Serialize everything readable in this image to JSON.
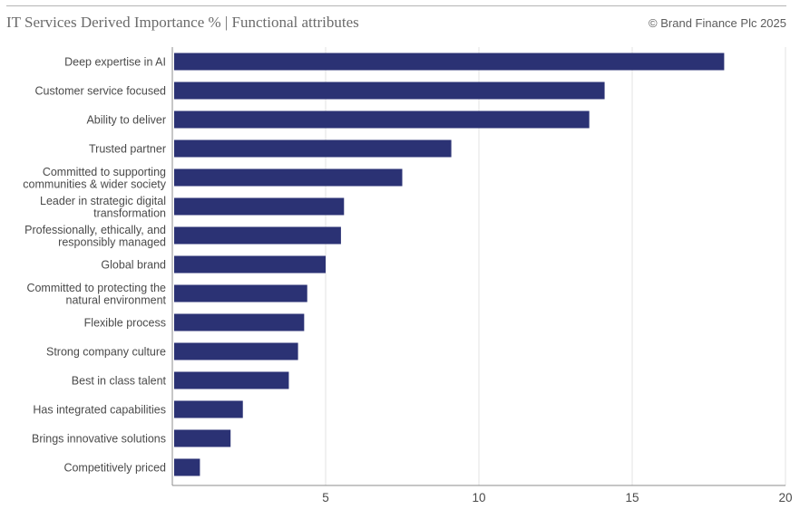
{
  "header": {
    "title": "IT Services Derived Importance % | Functional attributes",
    "credit": "© Brand Finance Plc 2025"
  },
  "colors": {
    "bar": "#2b3274",
    "grid": "#e3e3e3",
    "axis": "#8c8c8c"
  },
  "chart_data": {
    "type": "bar",
    "orientation": "horizontal",
    "title": "IT Services Derived Importance % | Functional attributes",
    "categories": [
      [
        "Deep expertise in AI"
      ],
      [
        "Customer service focused"
      ],
      [
        "Ability to deliver"
      ],
      [
        "Trusted partner"
      ],
      [
        "Committed to supporting",
        "communities & wider society"
      ],
      [
        "Leader in strategic digital",
        "transformation"
      ],
      [
        "Professionally, ethically, and",
        "responsibly managed"
      ],
      [
        "Global brand"
      ],
      [
        "Committed to protecting the",
        "natural environment"
      ],
      [
        "Flexible process"
      ],
      [
        "Strong company culture"
      ],
      [
        "Best in class talent"
      ],
      [
        "Has integrated capabilities"
      ],
      [
        "Brings innovative solutions"
      ],
      [
        "Competitively priced"
      ]
    ],
    "values": [
      18.0,
      14.1,
      13.6,
      9.1,
      7.5,
      5.6,
      5.5,
      5.0,
      4.4,
      4.3,
      4.1,
      3.8,
      2.3,
      1.9,
      0.9
    ],
    "xlim": [
      0,
      20
    ],
    "xticks": [
      5,
      10,
      15,
      20
    ],
    "grid": true,
    "legend": "none"
  }
}
